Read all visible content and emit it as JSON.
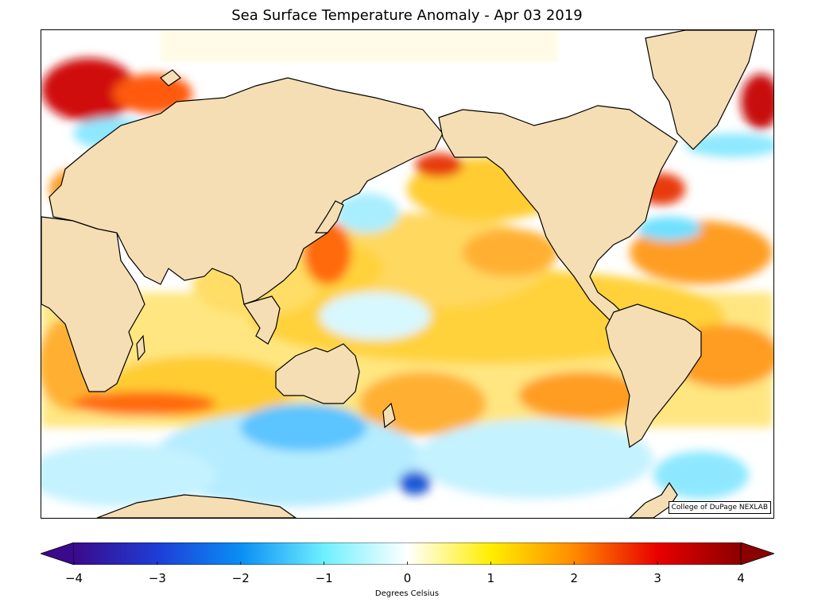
{
  "title": "Sea Surface Temperature Anomaly - Apr 03 2019",
  "credit": "College of DuPage NEXLAB",
  "colorbar": {
    "label": "Degrees Celsius",
    "min": -4,
    "max": 4,
    "extend": "both",
    "ticks": [
      {
        "value": -4,
        "label": "−4"
      },
      {
        "value": -3,
        "label": "−3"
      },
      {
        "value": -2,
        "label": "−2"
      },
      {
        "value": -1,
        "label": "−1"
      },
      {
        "value": 0,
        "label": "0"
      },
      {
        "value": 1,
        "label": "1"
      },
      {
        "value": 2,
        "label": "2"
      },
      {
        "value": 3,
        "label": "3"
      },
      {
        "value": 4,
        "label": "4"
      }
    ],
    "stops": [
      {
        "value": -4,
        "color": "#3a0a8c"
      },
      {
        "value": -3,
        "color": "#1e3dd6"
      },
      {
        "value": -2,
        "color": "#0a8ef5"
      },
      {
        "value": -1,
        "color": "#6ef0ff"
      },
      {
        "value": 0,
        "color": "#ffffff"
      },
      {
        "value": 1,
        "color": "#ffee00"
      },
      {
        "value": 2,
        "color": "#ff8a00"
      },
      {
        "value": 3,
        "color": "#e80000"
      },
      {
        "value": 4,
        "color": "#8b0000"
      }
    ]
  },
  "colors": {
    "land": "#f5deb3",
    "coastline": "#000000",
    "ocean_neutral": "#ffffff",
    "ice": "#fffbe6"
  }
}
